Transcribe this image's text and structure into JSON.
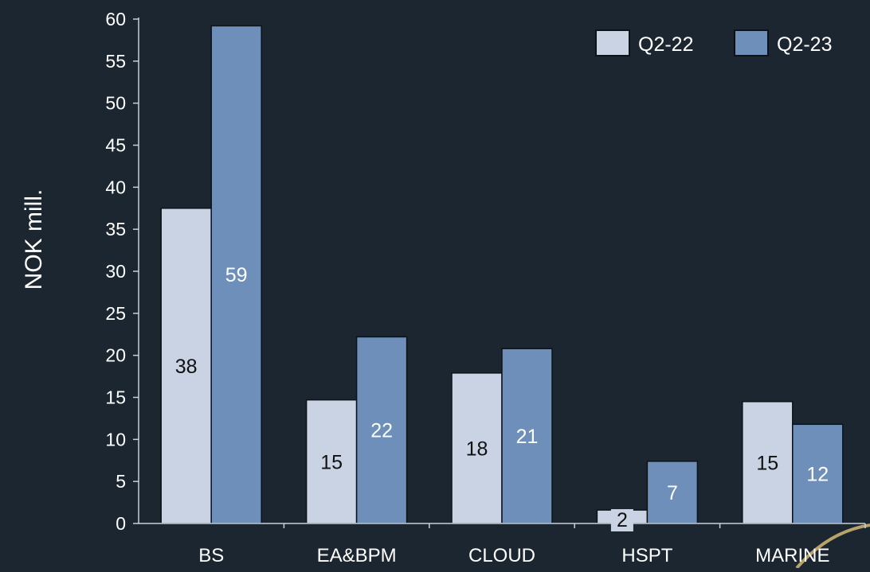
{
  "colors": {
    "background": "#1b2631",
    "axis": "#c8d0da",
    "text": "#ffffff",
    "series_q2_22": "#c9d3e3",
    "series_q2_23": "#6e8fb9",
    "bar_outline": "#0d1218",
    "decor_arc": "#b9a36a"
  },
  "chart_data": {
    "type": "bar",
    "title": "",
    "xlabel": "",
    "ylabel": "NOK mill.",
    "categories": [
      "BS",
      "EA&BPM",
      "CLOUD",
      "HSPT",
      "MARINE"
    ],
    "ylim": [
      0,
      60
    ],
    "ytick_step": 5,
    "yticks": [
      "0",
      "5",
      "10",
      "15",
      "20",
      "25",
      "30",
      "35",
      "40",
      "45",
      "50",
      "55",
      "60"
    ],
    "grid": false,
    "legend_position": "top-right",
    "series": [
      {
        "name": "Q2-22",
        "values": [
          37.5,
          14.7,
          17.9,
          1.6,
          14.5
        ],
        "labels": [
          "38",
          "15",
          "18",
          "2",
          "15"
        ]
      },
      {
        "name": "Q2-23",
        "values": [
          59.2,
          22.2,
          20.8,
          7.4,
          11.8
        ],
        "labels": [
          "59",
          "22",
          "21",
          "7",
          "12"
        ]
      }
    ]
  }
}
